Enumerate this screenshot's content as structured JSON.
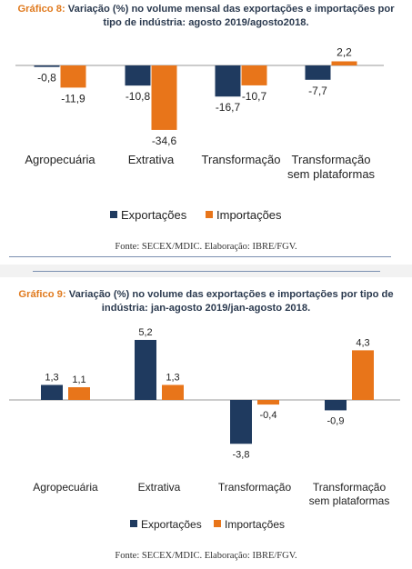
{
  "colors": {
    "exportacoes": "#1f3a5f",
    "importacoes": "#e8751a"
  },
  "chart_data": [
    {
      "type": "bar",
      "title_prefix": "Gráfico 8:",
      "title": "Variação (%) no volume mensal das exportações e importações por tipo de indústria: agosto 2019/agosto2018.",
      "categories": [
        "Agropecuária",
        "Extrativa",
        "Transformação",
        "Transformação sem plataformas"
      ],
      "series": [
        {
          "name": "Exportações",
          "values": [
            -0.8,
            -10.8,
            -16.7,
            -7.7
          ]
        },
        {
          "name": "Importações",
          "values": [
            -11.9,
            -34.6,
            -10.7,
            2.2
          ]
        }
      ],
      "value_labels": [
        [
          "-0,8",
          "-10,8",
          "-16,7",
          "-7,7"
        ],
        [
          "-11,9",
          "-34,6",
          "-10,7",
          "2,2"
        ]
      ],
      "legend_position": "bottom",
      "grid": false,
      "source": "Fonte: SECEX/MDIC. Elaboração: IBRE/FGV."
    },
    {
      "type": "bar",
      "title_prefix": "Gráfico 9:",
      "title": "Variação (%) no volume das exportações e importações por tipo de indústria: jan-agosto 2019/jan-agosto 2018.",
      "categories": [
        "Agropecuária",
        "Extrativa",
        "Transformação",
        "Transformação sem plataformas"
      ],
      "series": [
        {
          "name": "Exportações",
          "values": [
            1.3,
            5.2,
            -3.8,
            -0.9
          ]
        },
        {
          "name": "Importações",
          "values": [
            1.1,
            1.3,
            -0.4,
            4.3
          ]
        }
      ],
      "value_labels": [
        [
          "1,3",
          "5,2",
          "-3,8",
          "-0,9"
        ],
        [
          "1,1",
          "1,3",
          "-0,4",
          "4,3"
        ]
      ],
      "legend_position": "bottom",
      "grid": false,
      "source": "Fonte: SECEX/MDIC. Elaboração: IBRE/FGV."
    }
  ]
}
